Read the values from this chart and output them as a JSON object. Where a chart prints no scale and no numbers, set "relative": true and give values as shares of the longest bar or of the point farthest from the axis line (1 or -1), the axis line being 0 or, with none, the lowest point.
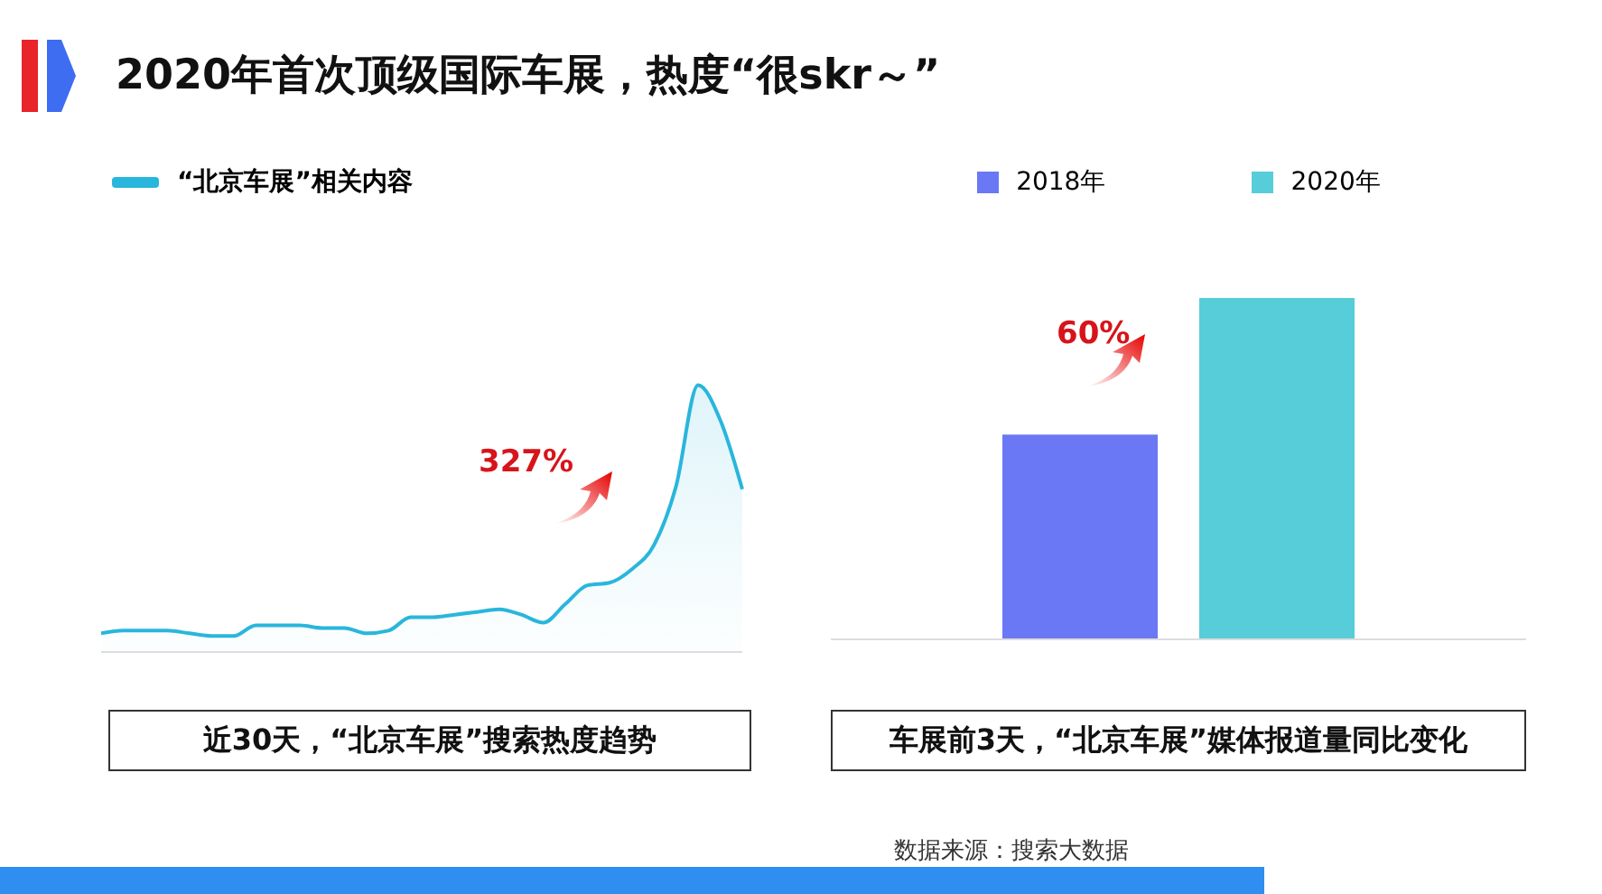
{
  "chart_data": [
    {
      "type": "area",
      "title": "2020年首次顶级国际车展，热度“很skr～”",
      "categories": [
        null,
        null,
        null,
        null,
        null,
        null,
        null,
        null,
        null,
        null,
        null,
        null,
        null,
        null,
        null,
        null,
        null,
        null,
        null,
        null,
        null,
        null,
        null,
        null,
        null,
        null,
        null,
        null,
        null,
        null
      ],
      "relative": true,
      "legend": "top left",
      "series": [
        {
          "name": "“北京车展”相关内容",
          "color": "#29b6dc",
          "values": [
            0.07,
            0.08,
            0.08,
            0.08,
            0.07,
            0.06,
            0.06,
            0.1,
            0.1,
            0.1,
            0.09,
            0.09,
            0.07,
            0.08,
            0.13,
            0.13,
            0.14,
            0.15,
            0.16,
            0.14,
            0.11,
            0.18,
            0.25,
            0.26,
            0.31,
            0.4,
            0.62,
            1,
            0.87,
            0.61
          ]
        }
      ],
      "annotations": [
        "327%",
        "近30天，“北京车展”搜索热度趋势"
      ]
    },
    {
      "type": "bar",
      "categories": [
        null
      ],
      "relative": true,
      "legend": "top",
      "series": [
        {
          "name": "2018年",
          "color": "#6a78f5",
          "values": [
            0.6
          ]
        },
        {
          "name": "2020年",
          "color": "#57cdd9",
          "values": [
            1
          ]
        }
      ],
      "annotations": [
        "60%",
        "车展前3天，“北京车展”媒体报道量同比变化",
        "数据来源：搜索大数据"
      ]
    }
  ]
}
